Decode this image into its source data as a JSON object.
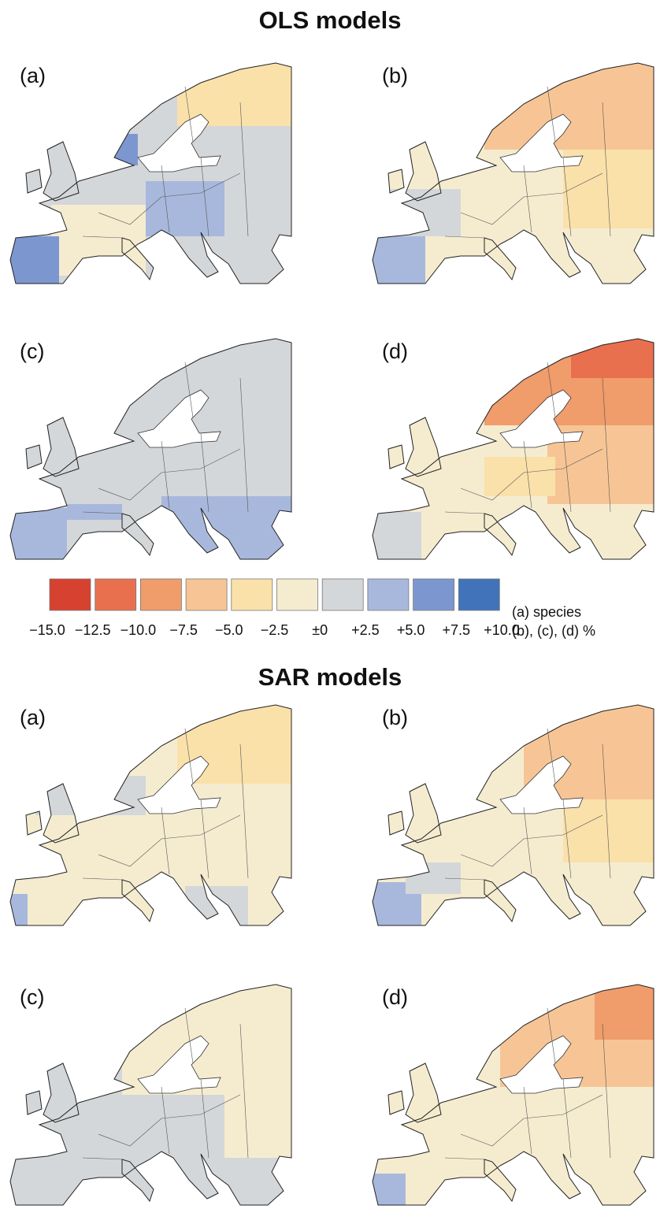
{
  "sections": [
    {
      "title": "OLS models",
      "panels": [
        {
          "label": "(a)"
        },
        {
          "label": "(b)"
        },
        {
          "label": "(c)"
        },
        {
          "label": "(d)"
        }
      ]
    },
    {
      "title": "SAR models",
      "panels": [
        {
          "label": "(a)"
        },
        {
          "label": "(b)"
        },
        {
          "label": "(c)"
        },
        {
          "label": "(d)"
        }
      ]
    }
  ],
  "legend": {
    "items": [
      {
        "label": "−15.0",
        "color": "#d7412f"
      },
      {
        "label": "−12.5",
        "color": "#e9704e"
      },
      {
        "label": "−10.0",
        "color": "#f09c6b"
      },
      {
        "label": "−7.5",
        "color": "#f7c595"
      },
      {
        "label": "−5.0",
        "color": "#fae1aa"
      },
      {
        "label": "−2.5",
        "color": "#f5ecd0"
      },
      {
        "label": "±0",
        "color": "#d4d7d9"
      },
      {
        "label": "+2.5",
        "color": "#a8b8dd"
      },
      {
        "label": "+5.0",
        "color": "#7c97d0"
      },
      {
        "label": "+7.5",
        "color": "#4173bb"
      },
      {
        "label": "+10.0",
        "color": null
      }
    ],
    "note": [
      "(a) species",
      "(b), (c), (d) %"
    ]
  }
}
